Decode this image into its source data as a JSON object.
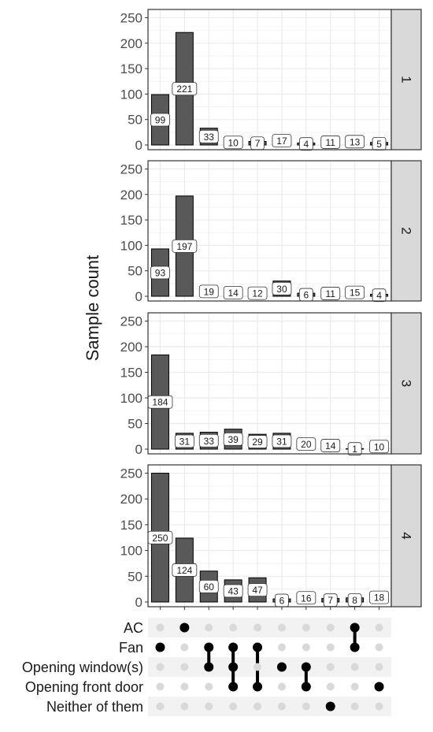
{
  "chart_data": {
    "type": "bar",
    "ylabel": "Sample count",
    "ylim": [
      0,
      260
    ],
    "yticks": [
      0,
      50,
      100,
      150,
      200,
      250
    ],
    "grid": true,
    "facet_labels": [
      "1",
      "2",
      "3",
      "4"
    ],
    "panels": [
      {
        "facet": "1",
        "values": [
          99,
          221,
          33,
          10,
          7,
          17,
          4,
          11,
          13,
          5
        ]
      },
      {
        "facet": "2",
        "values": [
          93,
          197,
          19,
          14,
          12,
          30,
          6,
          11,
          15,
          4
        ]
      },
      {
        "facet": "3",
        "values": [
          184,
          31,
          33,
          39,
          29,
          31,
          20,
          14,
          1,
          10
        ]
      },
      {
        "facet": "4",
        "values": [
          250,
          124,
          60,
          43,
          47,
          6,
          16,
          7,
          8,
          18
        ]
      }
    ],
    "sets": [
      "AC",
      "Fan",
      "Opening window(s)",
      "Opening front door",
      "Neither of them"
    ],
    "intersections": [
      [
        "Fan"
      ],
      [
        "AC"
      ],
      [
        "Fan",
        "Opening window(s)"
      ],
      [
        "Fan",
        "Opening window(s)",
        "Opening front door"
      ],
      [
        "Fan",
        "Opening front door"
      ],
      [
        "Opening window(s)"
      ],
      [
        "Opening window(s)",
        "Opening front door"
      ],
      [
        "Neither of them"
      ],
      [
        "AC",
        "Fan"
      ],
      [
        "Opening front door"
      ]
    ]
  },
  "colors": {
    "bar_fill": "#595959",
    "bar_stroke": "#000000",
    "grid_line": "#ebebeb",
    "panel_border": "#333333",
    "strip_fill": "#d9d9d9",
    "dot_active": "#000000",
    "dot_inactive": "#d9d9d9",
    "matrix_band": "#f2f2f2"
  }
}
